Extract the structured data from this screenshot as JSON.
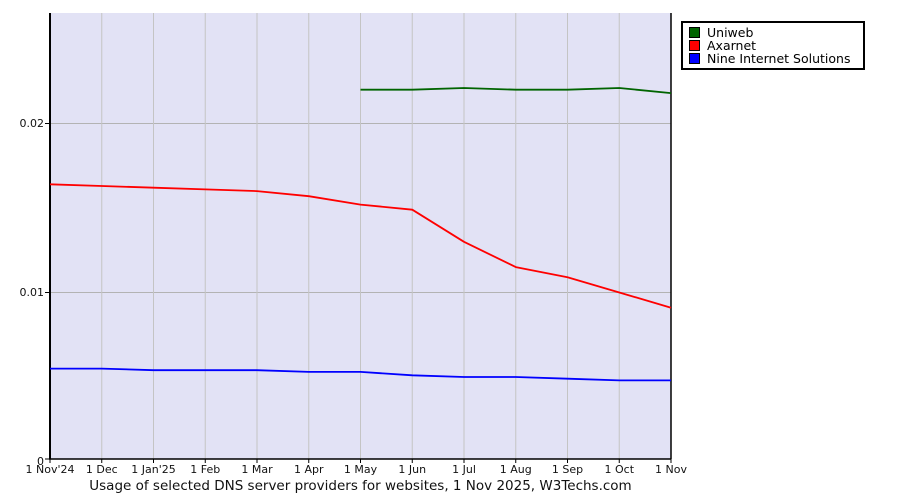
{
  "chart_data": {
    "type": "line",
    "title": "Usage of selected DNS server providers for websites, 1 Nov 2025, W3Techs.com",
    "x_labels": [
      "1 Nov'24",
      "1 Dec",
      "1 Jan'25",
      "1 Feb",
      "1 Mar",
      "1 Apr",
      "1 May",
      "1 Jun",
      "1 Jul",
      "1 Aug",
      "1 Sep",
      "1 Oct",
      "1 Nov"
    ],
    "y_ticks": [
      0,
      0.01,
      0.02
    ],
    "y_tick_labels": [
      "0",
      "0.01",
      "0.02"
    ],
    "ylim": [
      0,
      0.0265
    ],
    "grid": true,
    "legend_position": "top-right",
    "series": [
      {
        "name": "Uniweb",
        "color": "#006400",
        "values": [
          null,
          null,
          null,
          null,
          null,
          null,
          0.022,
          0.022,
          0.0221,
          0.022,
          0.022,
          0.0221,
          0.0218
        ]
      },
      {
        "name": "Axarnet",
        "color": "#ff0000",
        "values": [
          0.0164,
          0.0163,
          0.0162,
          0.0161,
          0.016,
          0.0157,
          0.0152,
          0.0149,
          0.013,
          0.0115,
          0.0109,
          0.01,
          0.0091
        ]
      },
      {
        "name": "Nine Internet Solutions",
        "color": "#0000ff",
        "values": [
          0.0055,
          0.0055,
          0.0054,
          0.0054,
          0.0054,
          0.0053,
          0.0053,
          0.0051,
          0.005,
          0.005,
          0.0049,
          0.0048,
          0.0048
        ]
      }
    ],
    "colors": {
      "plot_background": "#e2e2f5",
      "horizontal_grid": "#b3b3b3",
      "vertical_grid": "#c4c4c4",
      "axis": "#000000"
    }
  }
}
